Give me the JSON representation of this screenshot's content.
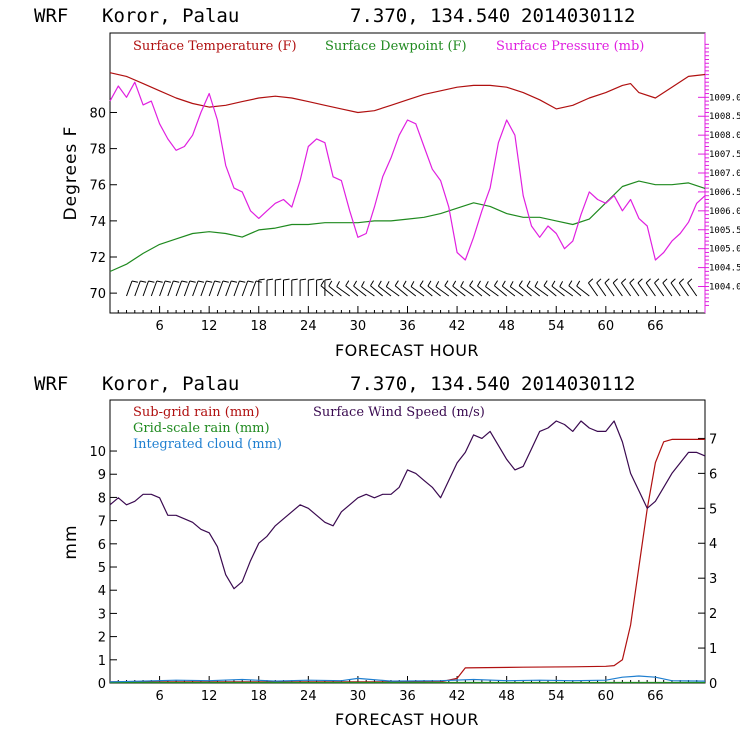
{
  "chart_data": [
    {
      "type": "line",
      "header": {
        "model": "WRF",
        "location": "Koror, Palau",
        "coords": "7.370, 134.540",
        "init": "2014030112"
      },
      "xlabel": "FORECAST HOUR",
      "ylabel": "Degrees F",
      "xlim": [
        0,
        72
      ],
      "x_ticks": [
        6,
        12,
        18,
        24,
        30,
        36,
        42,
        48,
        54,
        60,
        66
      ],
      "ylim": [
        68.9,
        84.4
      ],
      "y_ticks": [
        70,
        72,
        74,
        76,
        78,
        80
      ],
      "y2lim": [
        1003.3,
        1010.7
      ],
      "y2_ticks": [
        "1004.0",
        "1004.5",
        "1005.0",
        "1005.5",
        "1006.0",
        "1006.5",
        "1007.0",
        "1007.5",
        "1008.0",
        "1008.5",
        "1009.0"
      ],
      "colors": {
        "temperature": "#b01010",
        "dewpoint": "#1f8a1f",
        "pressure": "#e020e0",
        "wind_barbs": "#000000"
      },
      "series": [
        {
          "name": "Surface Temperature (F)",
          "axis": "left",
          "x": [
            0,
            2,
            4,
            6,
            8,
            10,
            12,
            14,
            16,
            18,
            20,
            22,
            24,
            26,
            28,
            30,
            32,
            34,
            36,
            38,
            40,
            42,
            44,
            46,
            48,
            50,
            52,
            54,
            56,
            58,
            60,
            62,
            63,
            64,
            66,
            68,
            70,
            72
          ],
          "y": [
            82.2,
            82.0,
            81.6,
            81.2,
            80.8,
            80.5,
            80.3,
            80.4,
            80.6,
            80.8,
            80.9,
            80.8,
            80.6,
            80.4,
            80.2,
            80.0,
            80.1,
            80.4,
            80.7,
            81.0,
            81.2,
            81.4,
            81.5,
            81.5,
            81.4,
            81.1,
            80.7,
            80.2,
            80.4,
            80.8,
            81.1,
            81.5,
            81.6,
            81.1,
            80.8,
            81.4,
            82.0,
            82.1
          ]
        },
        {
          "name": "Surface Dewpoint (F)",
          "axis": "left",
          "x": [
            0,
            2,
            4,
            6,
            8,
            10,
            12,
            14,
            16,
            18,
            20,
            22,
            24,
            26,
            28,
            30,
            32,
            34,
            36,
            38,
            40,
            42,
            44,
            46,
            48,
            50,
            52,
            54,
            56,
            58,
            60,
            62,
            64,
            66,
            68,
            70,
            72
          ],
          "y": [
            71.2,
            71.6,
            72.2,
            72.7,
            73.0,
            73.3,
            73.4,
            73.3,
            73.1,
            73.5,
            73.6,
            73.8,
            73.8,
            73.9,
            73.9,
            73.9,
            74.0,
            74.0,
            74.1,
            74.2,
            74.4,
            74.7,
            75.0,
            74.8,
            74.4,
            74.2,
            74.2,
            74.0,
            73.8,
            74.1,
            75.0,
            75.9,
            76.2,
            76.0,
            76.0,
            76.1,
            75.8
          ]
        },
        {
          "name": "Surface Pressure (mb)",
          "axis": "right",
          "x": [
            0,
            1,
            2,
            3,
            4,
            5,
            6,
            7,
            8,
            9,
            10,
            11,
            12,
            13,
            14,
            15,
            16,
            17,
            18,
            19,
            20,
            21,
            22,
            23,
            24,
            25,
            26,
            27,
            28,
            29,
            30,
            31,
            32,
            33,
            34,
            35,
            36,
            37,
            38,
            39,
            40,
            41,
            42,
            43,
            44,
            45,
            46,
            47,
            48,
            49,
            50,
            51,
            52,
            53,
            54,
            55,
            56,
            57,
            58,
            59,
            60,
            61,
            62,
            63,
            64,
            65,
            66,
            67,
            68,
            69,
            70,
            71,
            72
          ],
          "y": [
            1008.9,
            1009.3,
            1009.0,
            1009.4,
            1008.8,
            1008.9,
            1008.3,
            1007.9,
            1007.6,
            1007.7,
            1008.0,
            1008.6,
            1009.1,
            1008.4,
            1007.2,
            1006.6,
            1006.5,
            1006.0,
            1005.8,
            1006.0,
            1006.2,
            1006.3,
            1006.1,
            1006.8,
            1007.7,
            1007.9,
            1007.8,
            1006.9,
            1006.8,
            1006.0,
            1005.3,
            1005.4,
            1006.1,
            1006.9,
            1007.4,
            1008.0,
            1008.4,
            1008.3,
            1007.7,
            1007.1,
            1006.8,
            1006.1,
            1004.9,
            1004.7,
            1005.3,
            1006.0,
            1006.6,
            1007.8,
            1008.4,
            1008.0,
            1006.4,
            1005.6,
            1005.3,
            1005.6,
            1005.4,
            1005.0,
            1005.2,
            1005.9,
            1006.5,
            1006.3,
            1006.2,
            1006.4,
            1006.0,
            1006.3,
            1005.8,
            1005.6,
            1004.7,
            1004.9,
            1005.2,
            1005.4,
            1005.7,
            1006.2,
            1006.4
          ]
        }
      ]
    },
    {
      "type": "line",
      "header": {
        "model": "WRF",
        "location": "Koror, Palau",
        "coords": "7.370, 134.540",
        "init": "2014030112"
      },
      "xlabel": "FORECAST HOUR",
      "ylabel": "mm",
      "xlim": [
        0,
        72
      ],
      "x_ticks": [
        6,
        12,
        18,
        24,
        30,
        36,
        42,
        48,
        54,
        60,
        66
      ],
      "ylim": [
        0,
        12.2
      ],
      "y_ticks": [
        0,
        1,
        2,
        3,
        4,
        5,
        6,
        7,
        8,
        9,
        10
      ],
      "y2lim": [
        0,
        8.1
      ],
      "y2_ticks": [
        0,
        1,
        2,
        3,
        4,
        5,
        6,
        7
      ],
      "colors": {
        "subgrid_rain": "#b01010",
        "grid_rain": "#1f8a1f",
        "cloud": "#1f7fd0",
        "wind_speed": "#3a0a50"
      },
      "series": [
        {
          "name": "Sub-grid rain (mm)",
          "axis": "left",
          "x": [
            0,
            40,
            42,
            43,
            50,
            56,
            60,
            61,
            62,
            63,
            64,
            65,
            66,
            67,
            68,
            72
          ],
          "y": [
            0.05,
            0.05,
            0.2,
            0.65,
            0.68,
            0.7,
            0.72,
            0.75,
            1.0,
            2.5,
            5.0,
            7.5,
            9.5,
            10.4,
            10.5,
            10.5
          ]
        },
        {
          "name": "Grid-scale rain (mm)",
          "axis": "left",
          "x": [
            0,
            72
          ],
          "y": [
            0.02,
            0.02
          ]
        },
        {
          "name": "Integrated cloud (mm)",
          "axis": "left",
          "x": [
            0,
            4,
            8,
            12,
            16,
            20,
            24,
            28,
            30,
            34,
            40,
            44,
            48,
            52,
            56,
            60,
            62,
            64,
            66,
            68,
            72
          ],
          "y": [
            0.05,
            0.08,
            0.12,
            0.1,
            0.15,
            0.08,
            0.12,
            0.1,
            0.2,
            0.08,
            0.1,
            0.15,
            0.1,
            0.12,
            0.1,
            0.12,
            0.25,
            0.3,
            0.25,
            0.1,
            0.08
          ]
        },
        {
          "name": "Surface Wind Speed (m/s)",
          "axis": "right",
          "x": [
            0,
            1,
            2,
            3,
            4,
            5,
            6,
            7,
            8,
            9,
            10,
            11,
            12,
            13,
            14,
            15,
            16,
            17,
            18,
            19,
            20,
            21,
            22,
            23,
            24,
            25,
            26,
            27,
            28,
            29,
            30,
            31,
            32,
            33,
            34,
            35,
            36,
            37,
            38,
            39,
            40,
            41,
            42,
            43,
            44,
            45,
            46,
            47,
            48,
            49,
            50,
            51,
            52,
            53,
            54,
            55,
            56,
            57,
            58,
            59,
            60,
            61,
            62,
            63,
            64,
            65,
            66,
            67,
            68,
            69,
            70,
            71,
            72
          ],
          "y": [
            5.1,
            5.3,
            5.1,
            5.2,
            5.4,
            5.4,
            5.3,
            4.8,
            4.8,
            4.7,
            4.6,
            4.4,
            4.3,
            3.9,
            3.1,
            2.7,
            2.9,
            3.5,
            4.0,
            4.2,
            4.5,
            4.7,
            4.9,
            5.1,
            5.0,
            4.8,
            4.6,
            4.5,
            4.9,
            5.1,
            5.3,
            5.4,
            5.3,
            5.4,
            5.4,
            5.6,
            6.1,
            6.0,
            5.8,
            5.6,
            5.3,
            5.8,
            6.3,
            6.6,
            7.1,
            7.0,
            7.2,
            6.8,
            6.4,
            6.1,
            6.2,
            6.7,
            7.2,
            7.3,
            7.5,
            7.4,
            7.2,
            7.5,
            7.3,
            7.2,
            7.2,
            7.5,
            6.9,
            6.0,
            5.5,
            5.0,
            5.2,
            5.6,
            6.0,
            6.3,
            6.6,
            6.6,
            6.5
          ]
        }
      ]
    }
  ]
}
